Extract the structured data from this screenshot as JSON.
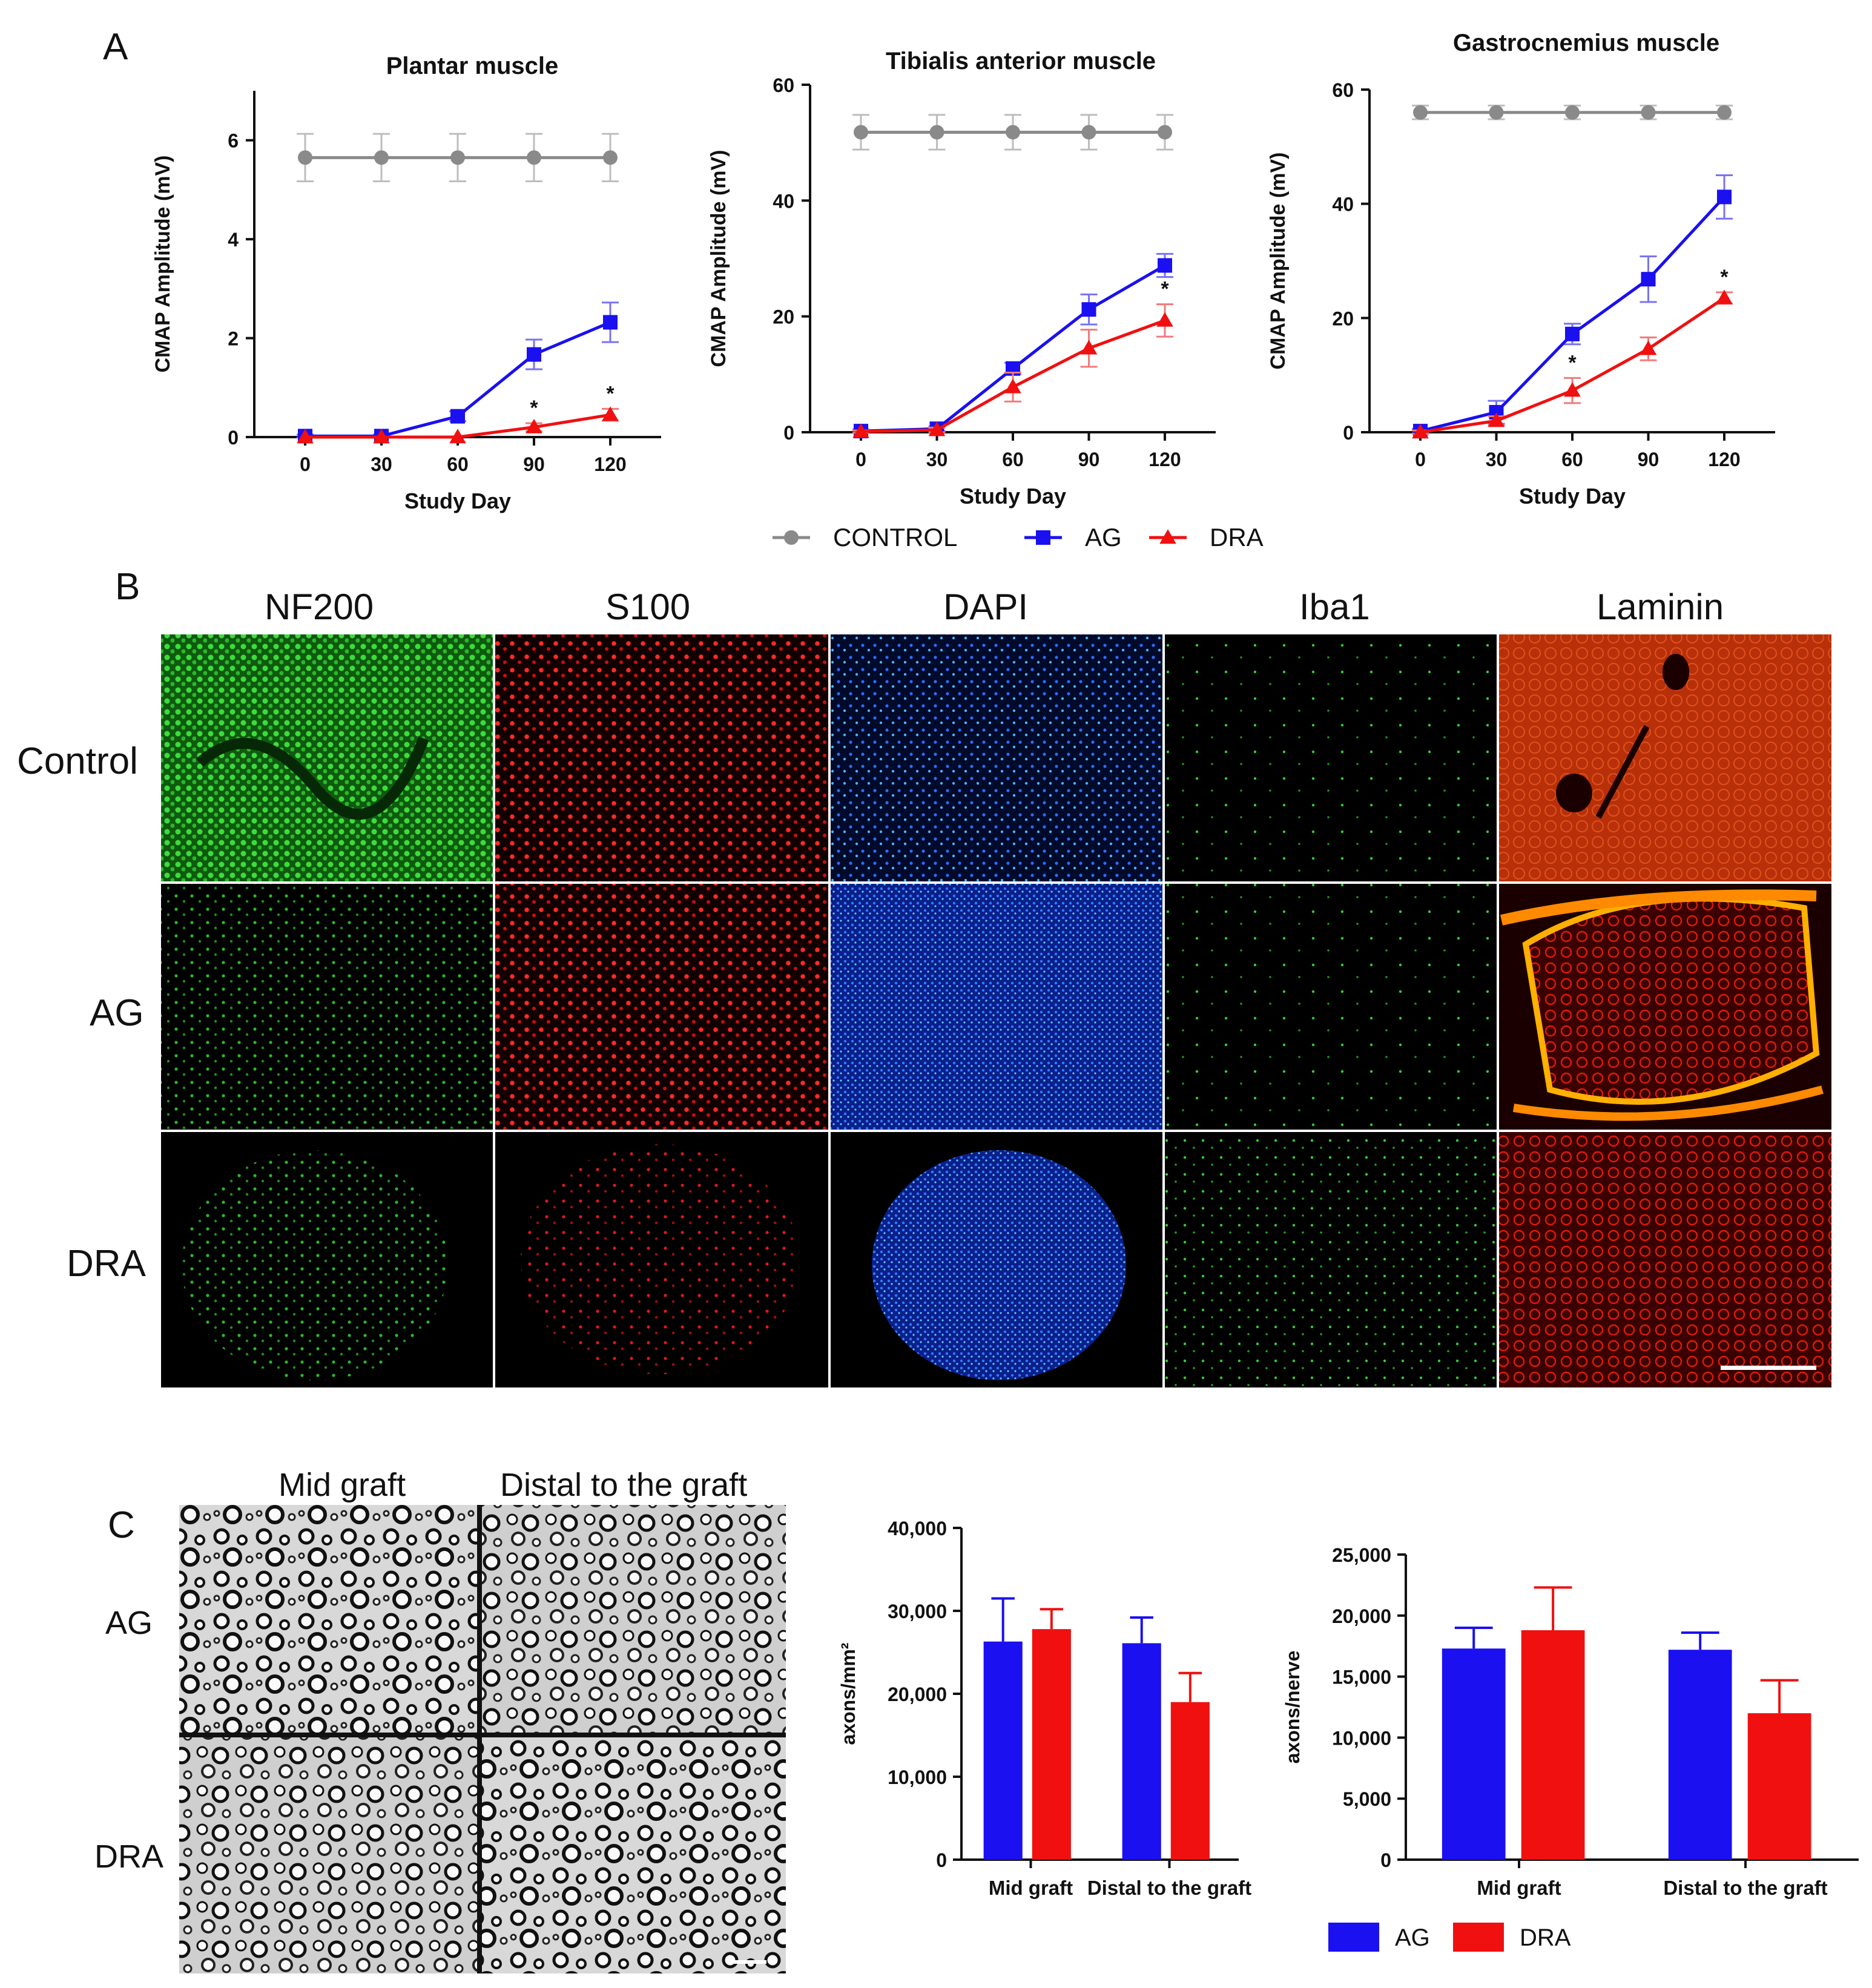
{
  "panels": {
    "a": {
      "letter": "A"
    },
    "b": {
      "letter": "B"
    },
    "c": {
      "letter": "C"
    }
  },
  "colors": {
    "control": "#8a8a8a",
    "control_err": "#bdbdbd",
    "ag": "#1a10f0",
    "ag_err": "#7a72f2",
    "dra": "#f01010",
    "dra_err": "#f07a7a"
  },
  "legend_a": [
    {
      "label": "CONTROL",
      "marker": "circle",
      "color_key": "control"
    },
    {
      "label": "AG",
      "marker": "square",
      "color_key": "ag"
    },
    {
      "label": "DRA",
      "marker": "triangle",
      "color_key": "dra"
    }
  ],
  "legend_c": [
    {
      "label": "AG",
      "color_key": "ag"
    },
    {
      "label": "DRA",
      "color_key": "dra"
    }
  ],
  "microscopy": {
    "columns": [
      "NF200",
      "S100",
      "DAPI",
      "Iba1",
      "Laminin"
    ],
    "rows": [
      "Control",
      "AG",
      "DRA"
    ],
    "scale_bar": true
  },
  "histology": {
    "columns": [
      "Mid graft",
      "Distal to the graft"
    ],
    "rows": [
      "AG",
      "DRA"
    ]
  },
  "chart_data": [
    {
      "type": "line",
      "title": "Plantar muscle",
      "xlabel": "Study Day",
      "ylabel": "CMAP Amplitude (mV)",
      "x": [
        0,
        30,
        60,
        90,
        120
      ],
      "xticks": [
        0,
        30,
        60,
        90,
        120
      ],
      "ylim": [
        0,
        7
      ],
      "yticks": [
        0,
        2,
        4,
        6
      ],
      "series": [
        {
          "name": "CONTROL",
          "marker": "circle",
          "values": [
            5.65,
            5.65,
            5.65,
            5.65,
            5.65
          ],
          "err": [
            0.48,
            0.48,
            0.48,
            0.48,
            0.48
          ]
        },
        {
          "name": "AG",
          "marker": "square",
          "values": [
            0.02,
            0.02,
            0.42,
            1.67,
            2.32
          ],
          "err": [
            0.03,
            0.03,
            0.1,
            0.3,
            0.4
          ]
        },
        {
          "name": "DRA",
          "marker": "triangle",
          "values": [
            0.0,
            0.0,
            0.0,
            0.2,
            0.45
          ],
          "err": [
            0.0,
            0.0,
            0.0,
            0.08,
            0.12
          ]
        }
      ],
      "significance": [
        {
          "x": 90,
          "label": "*"
        },
        {
          "x": 120,
          "label": "*"
        }
      ]
    },
    {
      "type": "line",
      "title": "Tibialis anterior muscle",
      "xlabel": "Study Day",
      "ylabel": "CMAP Amplitude (mV)",
      "x": [
        0,
        30,
        60,
        90,
        120
      ],
      "xticks": [
        0,
        30,
        60,
        90,
        120
      ],
      "ylim": [
        0,
        60
      ],
      "yticks": [
        0,
        20,
        40,
        60
      ],
      "series": [
        {
          "name": "CONTROL",
          "marker": "circle",
          "values": [
            51.8,
            51.8,
            51.8,
            51.8,
            51.8
          ],
          "err": [
            3,
            3,
            3,
            3,
            3
          ]
        },
        {
          "name": "AG",
          "marker": "square",
          "values": [
            0.2,
            0.6,
            11.0,
            21.2,
            28.8
          ],
          "err": [
            0.3,
            0.4,
            1.0,
            2.6,
            2.0
          ]
        },
        {
          "name": "DRA",
          "marker": "triangle",
          "values": [
            0.1,
            0.4,
            7.8,
            14.5,
            19.3
          ],
          "err": [
            0.2,
            0.4,
            2.5,
            3.2,
            2.8
          ]
        }
      ],
      "significance": [
        {
          "x": 120,
          "label": "*"
        }
      ]
    },
    {
      "type": "line",
      "title": "Gastrocnemius muscle",
      "xlabel": "Study Day",
      "ylabel": "CMAP Amplitude (mV)",
      "x": [
        0,
        30,
        60,
        90,
        120
      ],
      "xticks": [
        0,
        30,
        60,
        90,
        120
      ],
      "ylim": [
        0,
        60
      ],
      "yticks": [
        0,
        20,
        40,
        60
      ],
      "series": [
        {
          "name": "CONTROL",
          "marker": "circle",
          "values": [
            56.0,
            56.0,
            56.0,
            56.0,
            56.0
          ],
          "err": [
            1.2,
            1.2,
            1.2,
            1.2,
            1.2
          ]
        },
        {
          "name": "AG",
          "marker": "square",
          "values": [
            0.2,
            3.5,
            17.2,
            26.8,
            41.2
          ],
          "err": [
            0.4,
            2.0,
            1.8,
            4.0,
            3.8
          ]
        },
        {
          "name": "DRA",
          "marker": "triangle",
          "values": [
            0.0,
            2.0,
            7.3,
            14.6,
            23.5
          ],
          "err": [
            0.3,
            0.8,
            2.2,
            2.0,
            1.0
          ]
        }
      ],
      "significance": [
        {
          "x": 60,
          "label": "*"
        },
        {
          "x": 120,
          "label": "*"
        }
      ]
    },
    {
      "type": "bar",
      "title": "",
      "xlabel": "",
      "ylabel": "axons/mm²",
      "categories": [
        "Mid graft",
        "Distal to the graft"
      ],
      "ylim": [
        0,
        40000
      ],
      "yticks": [
        "0",
        "10,000",
        "20,000",
        "30,000",
        "40,000"
      ],
      "yticks_values": [
        0,
        10000,
        20000,
        30000,
        40000
      ],
      "series": [
        {
          "name": "AG",
          "values": [
            26300,
            26100
          ],
          "err": [
            5200,
            3100
          ]
        },
        {
          "name": "DRA",
          "values": [
            27800,
            19000
          ],
          "err": [
            2400,
            3500
          ]
        }
      ]
    },
    {
      "type": "bar",
      "title": "",
      "xlabel": "",
      "ylabel": "axons/nerve",
      "categories": [
        "Mid graft",
        "Distal to the graft"
      ],
      "ylim": [
        0,
        25000
      ],
      "yticks": [
        "0",
        "5,000",
        "10,000",
        "15,000",
        "20,000",
        "25,000"
      ],
      "yticks_values": [
        0,
        5000,
        10000,
        15000,
        20000,
        25000
      ],
      "series": [
        {
          "name": "AG",
          "values": [
            17300,
            17200
          ],
          "err": [
            1700,
            1400
          ]
        },
        {
          "name": "DRA",
          "values": [
            18800,
            12000
          ],
          "err": [
            3500,
            2700
          ]
        }
      ]
    }
  ]
}
